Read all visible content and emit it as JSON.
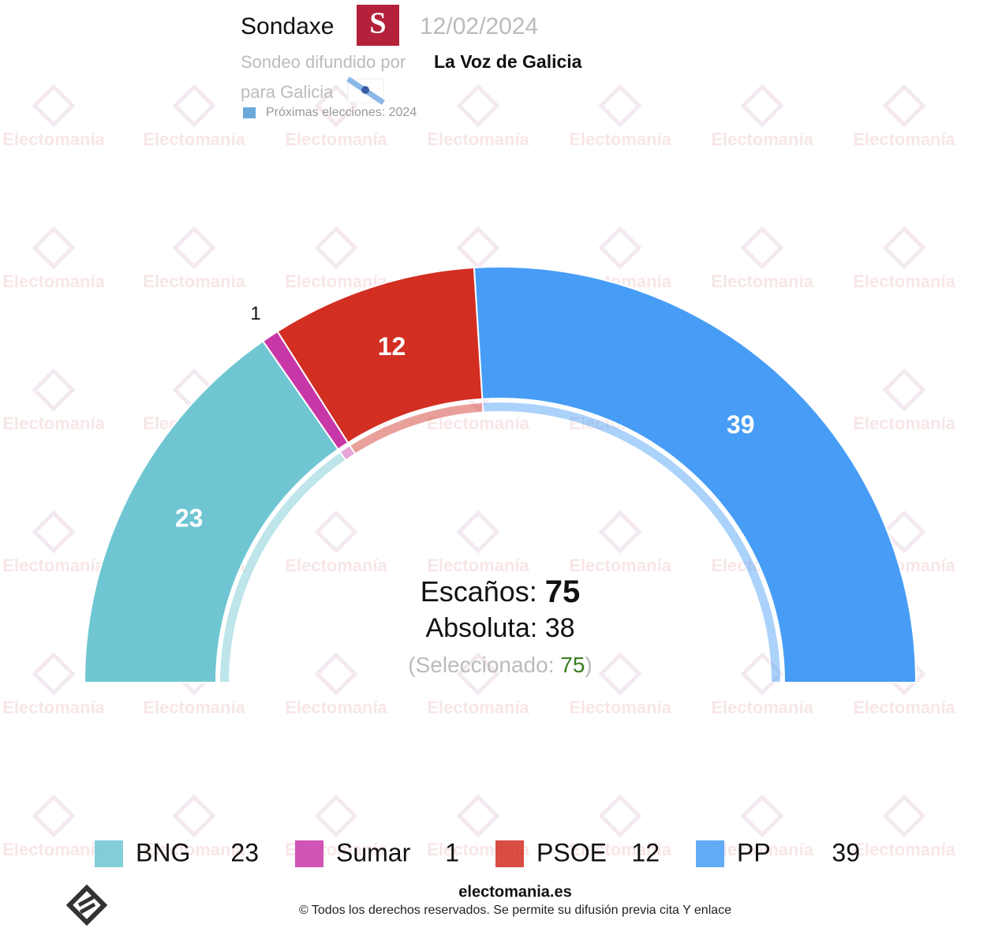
{
  "header": {
    "pollster": "Sondaxe",
    "date": "12/02/2024",
    "published_by_label": "Sondeo difundido por",
    "publisher": "La Voz de Galicia",
    "region": "para Galicia",
    "next_elections": "Próximas elecciones: 2024"
  },
  "chart_data": {
    "type": "semicircle",
    "categories": [
      "BNG",
      "Sumar",
      "PSOE",
      "PP"
    ],
    "values": [
      23,
      1,
      12,
      39
    ],
    "colors": [
      "#6fc6d2",
      "#c837a8",
      "#d22e22",
      "#479df6"
    ]
  },
  "center": {
    "seats_label": "Escaños:",
    "seats": 75,
    "majority_label": "Absoluta:",
    "majority": 38,
    "selected_label": "(Seleccionado:",
    "selected": 75,
    "selected_close": ")"
  },
  "footer": {
    "site": "electomania.es",
    "copyright": "© Todos los derechos reservados. Se permite su difusión previa cita Y enlace"
  },
  "watermark": "Electomanía"
}
